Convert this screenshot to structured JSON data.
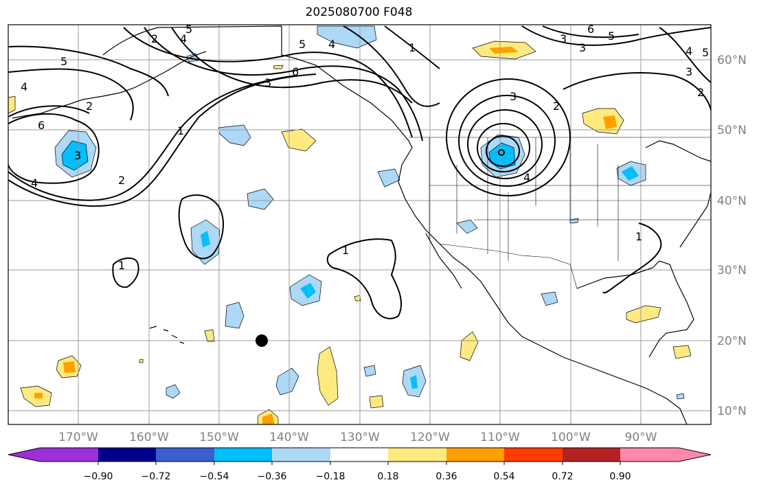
{
  "title": "2025080700 F048",
  "lat_labels": [
    "60°N",
    "50°N",
    "40°N",
    "30°N",
    "20°N",
    "10°N"
  ],
  "lon_labels": [
    "170°W",
    "160°W",
    "150°W",
    "140°W",
    "130°W",
    "120°W",
    "110°W",
    "100°W",
    "90°W"
  ],
  "colorbar": {
    "colors": [
      "#9b30d9",
      "#00008b",
      "#3a5fcd",
      "#00bfff",
      "#add8f6",
      "#ffffff",
      "#ffea80",
      "#ffa000",
      "#ff3c00",
      "#b22222",
      "#ff88aa"
    ],
    "tick_labels": [
      "−0.90",
      "−0.72",
      "−0.54",
      "−0.36",
      "−0.18",
      "0.18",
      "0.36",
      "0.54",
      "0.72",
      "0.90"
    ]
  },
  "contour_labels": [
    "5",
    "4",
    "2",
    "4",
    "5",
    "6",
    "3",
    "5",
    "3",
    "6",
    "4",
    "3",
    "2",
    "1",
    "6",
    "3",
    "4",
    "2",
    "1",
    "1",
    "3",
    "4",
    "6",
    "5",
    "1",
    "1",
    "4",
    "3",
    "2",
    "5"
  ],
  "colors": {
    "grid": "#9a9a9a",
    "coast": "#000000",
    "label": "#808080"
  }
}
